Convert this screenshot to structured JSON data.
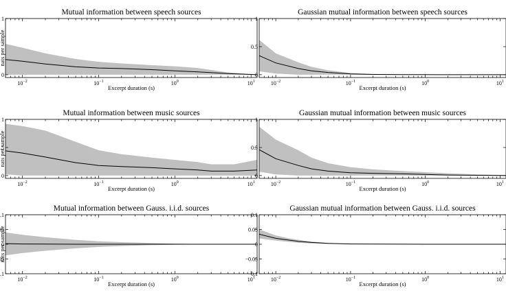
{
  "chart_data": [
    {
      "type": "area",
      "title": "Mutual information between speech sources",
      "xlabel": "Excerpt duration (s)",
      "ylabel": "nats per sample",
      "xscale": "log",
      "xlim": [
        0.006,
        12
      ],
      "ylim": [
        -0.05,
        1
      ],
      "yticks": [
        {
          "v": 0,
          "label": "0"
        },
        {
          "v": 1,
          "label": "1"
        }
      ],
      "xticks": [
        {
          "v": 0.01,
          "base": "10",
          "exp": "−2"
        },
        {
          "v": 0.1,
          "base": "10",
          "exp": "−1"
        },
        {
          "v": 1,
          "base": "10",
          "exp": "0"
        },
        {
          "v": 10,
          "base": "10",
          "exp": "1"
        }
      ],
      "x": [
        0.006,
        0.01,
        0.02,
        0.05,
        0.1,
        0.2,
        0.5,
        1,
        2,
        5,
        10,
        12
      ],
      "series": [
        {
          "role": "mean",
          "values": [
            0.27,
            0.24,
            0.19,
            0.14,
            0.12,
            0.11,
            0.09,
            0.07,
            0.05,
            0.02,
            0.005,
            0.0
          ]
        },
        {
          "role": "upper",
          "values": [
            0.55,
            0.48,
            0.38,
            0.28,
            0.23,
            0.2,
            0.17,
            0.15,
            0.12,
            0.04,
            0.01,
            0.005
          ]
        },
        {
          "role": "lower",
          "values": [
            0.0,
            0.0,
            0.0,
            0.0,
            0.0,
            0.0,
            0.0,
            0.0,
            0.0,
            0.0,
            0.0,
            0.0
          ]
        }
      ]
    },
    {
      "type": "area",
      "title": "Gaussian mutual information between speech sources",
      "xlabel": "Excerpt duration (s)",
      "ylabel": "",
      "xscale": "log",
      "xlim": [
        0.006,
        12
      ],
      "ylim": [
        -0.05,
        1
      ],
      "yticks": [
        {
          "v": 0,
          "label": "0"
        },
        {
          "v": 0.5,
          "label": "0.5"
        },
        {
          "v": 1,
          "label": "1"
        }
      ],
      "xticks": [
        {
          "v": 0.01,
          "base": "10",
          "exp": "−2"
        },
        {
          "v": 0.1,
          "base": "10",
          "exp": "−1"
        },
        {
          "v": 1,
          "base": "10",
          "exp": "0"
        },
        {
          "v": 10,
          "base": "10",
          "exp": "1"
        }
      ],
      "x": [
        0.006,
        0.01,
        0.02,
        0.03,
        0.05,
        0.1,
        0.2,
        0.5,
        1,
        10,
        12
      ],
      "series": [
        {
          "role": "mean",
          "values": [
            0.34,
            0.21,
            0.11,
            0.07,
            0.04,
            0.015,
            0.005,
            0.002,
            0.001,
            0.0,
            0.0
          ]
        },
        {
          "role": "upper",
          "values": [
            0.62,
            0.38,
            0.22,
            0.14,
            0.08,
            0.03,
            0.012,
            0.005,
            0.003,
            0.001,
            0.0
          ]
        },
        {
          "role": "lower",
          "values": [
            0.06,
            0.02,
            0.0,
            0.0,
            0.0,
            0.0,
            0.0,
            0.0,
            0.0,
            0.0,
            0.0
          ]
        }
      ]
    },
    {
      "type": "area",
      "title": "Mutual information between music sources",
      "xlabel": "Excerpt duration (s)",
      "ylabel": "nats per sample",
      "xscale": "log",
      "xlim": [
        0.006,
        12
      ],
      "ylim": [
        -0.05,
        1
      ],
      "yticks": [
        {
          "v": 0,
          "label": "0"
        },
        {
          "v": 0.5,
          "label": "0.5"
        },
        {
          "v": 1,
          "label": "1"
        }
      ],
      "xticks": [
        {
          "v": 0.01,
          "base": "10",
          "exp": "−2"
        },
        {
          "v": 0.1,
          "base": "10",
          "exp": "−1"
        },
        {
          "v": 1,
          "base": "10",
          "exp": "0"
        },
        {
          "v": 10,
          "base": "10",
          "exp": "1"
        }
      ],
      "x": [
        0.006,
        0.01,
        0.02,
        0.05,
        0.1,
        0.2,
        0.5,
        1,
        2,
        3,
        6,
        12
      ],
      "series": [
        {
          "role": "mean",
          "values": [
            0.44,
            0.4,
            0.33,
            0.23,
            0.18,
            0.16,
            0.14,
            0.12,
            0.1,
            0.08,
            0.08,
            0.1
          ]
        },
        {
          "role": "upper",
          "values": [
            0.92,
            0.88,
            0.8,
            0.6,
            0.45,
            0.38,
            0.32,
            0.28,
            0.24,
            0.2,
            0.2,
            0.28
          ]
        },
        {
          "role": "lower",
          "values": [
            0.02,
            0.0,
            0.0,
            0.0,
            0.0,
            0.0,
            0.0,
            0.0,
            0.0,
            0.0,
            0.0,
            0.0
          ]
        }
      ]
    },
    {
      "type": "area",
      "title": "Gaussian mutual information between music sources",
      "xlabel": "Excerpt duration (s)",
      "ylabel": "",
      "xscale": "log",
      "xlim": [
        0.006,
        12
      ],
      "ylim": [
        -0.05,
        1
      ],
      "yticks": [
        {
          "v": 0,
          "label": "0"
        },
        {
          "v": 0.5,
          "label": "0.5"
        },
        {
          "v": 1,
          "label": "1"
        }
      ],
      "xticks": [
        {
          "v": 0.01,
          "base": "10",
          "exp": "−2"
        },
        {
          "v": 0.1,
          "base": "10",
          "exp": "−1"
        },
        {
          "v": 1,
          "base": "10",
          "exp": "0"
        },
        {
          "v": 10,
          "base": "10",
          "exp": "1"
        }
      ],
      "x": [
        0.006,
        0.01,
        0.02,
        0.03,
        0.05,
        0.1,
        0.2,
        0.5,
        1,
        2,
        5,
        12
      ],
      "series": [
        {
          "role": "mean",
          "values": [
            0.46,
            0.3,
            0.18,
            0.12,
            0.08,
            0.05,
            0.04,
            0.03,
            0.02,
            0.01,
            0.005,
            0.0
          ]
        },
        {
          "role": "upper",
          "values": [
            0.87,
            0.64,
            0.45,
            0.32,
            0.22,
            0.15,
            0.11,
            0.08,
            0.06,
            0.04,
            0.02,
            0.01
          ]
        },
        {
          "role": "lower",
          "values": [
            0.07,
            0.02,
            0.0,
            0.0,
            0.0,
            0.0,
            0.0,
            0.0,
            0.0,
            0.0,
            0.0,
            0.0
          ]
        }
      ]
    },
    {
      "type": "area",
      "title": "Mutual information between Gauss. i.i.d. sources",
      "xlabel": "Excerpt duration (s)",
      "ylabel": "nats per sample",
      "xscale": "log",
      "xlim": [
        0.006,
        12
      ],
      "ylim": [
        -0.1,
        0.1
      ],
      "yticks": [
        {
          "v": -0.1,
          "label": "−0.1"
        },
        {
          "v": -0.05,
          "label": "−0.05"
        },
        {
          "v": 0,
          "label": "0"
        },
        {
          "v": 0.05,
          "label": "0.05"
        },
        {
          "v": 0.1,
          "label": "0.1"
        }
      ],
      "xticks": [
        {
          "v": 0.01,
          "base": "10",
          "exp": "−2"
        },
        {
          "v": 0.1,
          "base": "10",
          "exp": "−1"
        },
        {
          "v": 1,
          "base": "10",
          "exp": "0"
        },
        {
          "v": 10,
          "base": "10",
          "exp": "1"
        }
      ],
      "x": [
        0.006,
        0.01,
        0.02,
        0.05,
        0.1,
        0.2,
        0.5,
        1,
        2,
        5,
        12
      ],
      "series": [
        {
          "role": "mean",
          "values": [
            0.002,
            0.001,
            0.0005,
            0.0,
            0.0,
            0.0,
            0.0,
            0.0,
            0.0,
            0.0,
            0.0
          ]
        },
        {
          "role": "upper",
          "values": [
            0.04,
            0.032,
            0.024,
            0.015,
            0.01,
            0.007,
            0.004,
            0.002,
            0.001,
            0.0005,
            0.0002
          ]
        },
        {
          "role": "lower",
          "values": [
            -0.038,
            -0.03,
            -0.022,
            -0.014,
            -0.009,
            -0.006,
            -0.003,
            -0.0015,
            -0.0008,
            -0.0004,
            -0.0002
          ]
        }
      ]
    },
    {
      "type": "area",
      "title": "Gaussian mutual information between Gauss. i.i.d. sources",
      "xlabel": "Excerpt duration (s)",
      "ylabel": "",
      "xscale": "log",
      "xlim": [
        0.006,
        12
      ],
      "ylim": [
        -0.1,
        0.1
      ],
      "yticks": [
        {
          "v": -0.1,
          "label": "−0.1"
        },
        {
          "v": -0.05,
          "label": "−0.05"
        },
        {
          "v": 0,
          "label": "0"
        },
        {
          "v": 0.05,
          "label": "0.05"
        },
        {
          "v": 0.1,
          "label": "0.1"
        }
      ],
      "xticks": [
        {
          "v": 0.01,
          "base": "10",
          "exp": "−2"
        },
        {
          "v": 0.1,
          "base": "10",
          "exp": "−1"
        },
        {
          "v": 1,
          "base": "10",
          "exp": "0"
        },
        {
          "v": 10,
          "base": "10",
          "exp": "1"
        }
      ],
      "x": [
        0.006,
        0.01,
        0.015,
        0.02,
        0.03,
        0.05,
        0.1,
        0.2,
        0.5,
        1,
        12
      ],
      "series": [
        {
          "role": "mean",
          "values": [
            0.034,
            0.02,
            0.014,
            0.01,
            0.006,
            0.003,
            0.001,
            0.0005,
            0.0002,
            0.0001,
            0.0
          ]
        },
        {
          "role": "upper",
          "values": [
            0.05,
            0.03,
            0.02,
            0.015,
            0.009,
            0.004,
            0.0015,
            0.0006,
            0.0002,
            0.0001,
            0.0
          ]
        },
        {
          "role": "lower",
          "values": [
            0.02,
            0.012,
            0.008,
            0.005,
            0.003,
            0.0015,
            0.0005,
            0.0002,
            0.0001,
            0.0,
            0.0
          ]
        }
      ]
    }
  ],
  "style": {
    "band_color": "#c0c0c0",
    "line_color": "#000000",
    "axis_color": "#000000"
  }
}
